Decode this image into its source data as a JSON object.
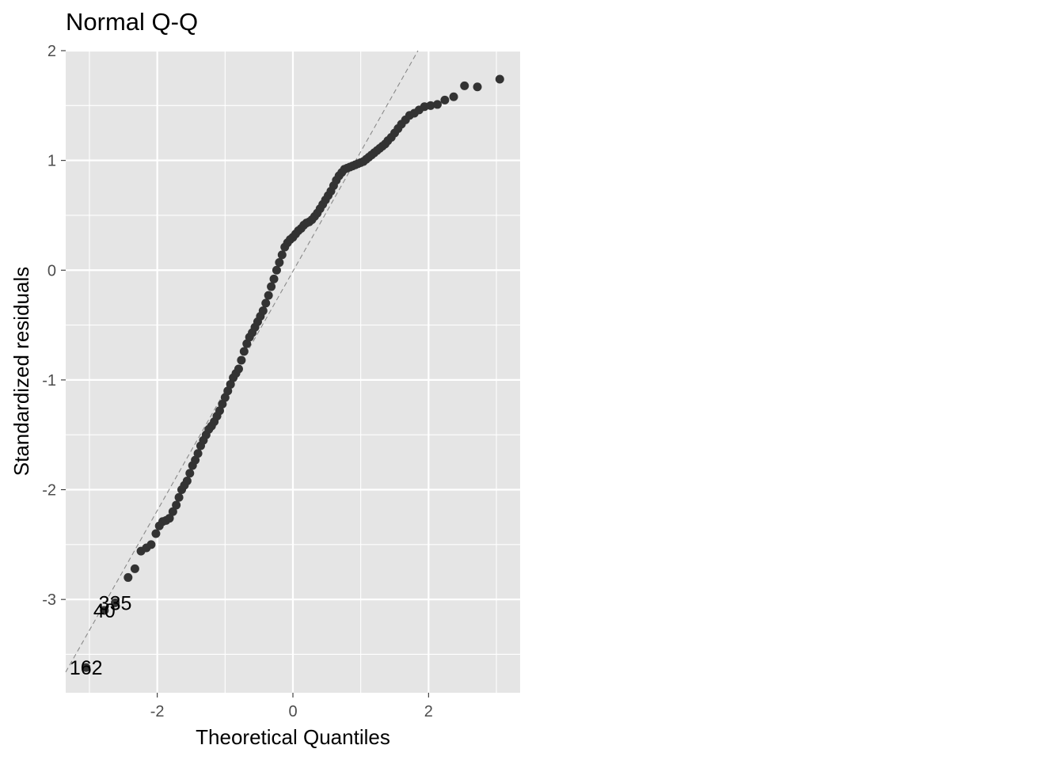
{
  "chart_data": {
    "type": "scatter",
    "title": "Normal Q-Q",
    "xlabel": "Theoretical Quantiles",
    "ylabel": "Standardized residuals",
    "xlim": [
      -3.35,
      3.35
    ],
    "ylim": [
      -3.85,
      2.0
    ],
    "x_ticks": [
      -2,
      0,
      2
    ],
    "y_ticks": [
      -3,
      -2,
      -1,
      0,
      1,
      2
    ],
    "x_tick_labels": [
      "-2",
      "0",
      "2"
    ],
    "y_tick_labels": [
      "-3",
      "-2",
      "-1",
      "0",
      "1",
      "2"
    ],
    "grid": true,
    "reference_line": {
      "intercept": -0.01,
      "slope": 1.09,
      "style": "dashed"
    },
    "points": [
      [
        -3.05,
        -3.62
      ],
      [
        -2.78,
        -3.1
      ],
      [
        -2.62,
        -3.03
      ],
      [
        -2.43,
        -2.8
      ],
      [
        -2.33,
        -2.72
      ],
      [
        -2.24,
        -2.56
      ],
      [
        -2.16,
        -2.53
      ],
      [
        -2.09,
        -2.5
      ],
      [
        -2.02,
        -2.4
      ],
      [
        -1.97,
        -2.33
      ],
      [
        -1.92,
        -2.29
      ],
      [
        -1.87,
        -2.28
      ],
      [
        -1.82,
        -2.26
      ],
      [
        -1.77,
        -2.2
      ],
      [
        -1.72,
        -2.14
      ],
      [
        -1.68,
        -2.07
      ],
      [
        -1.64,
        -2.0
      ],
      [
        -1.6,
        -1.96
      ],
      [
        -1.56,
        -1.92
      ],
      [
        -1.52,
        -1.85
      ],
      [
        -1.48,
        -1.78
      ],
      [
        -1.44,
        -1.73
      ],
      [
        -1.4,
        -1.67
      ],
      [
        -1.36,
        -1.6
      ],
      [
        -1.32,
        -1.55
      ],
      [
        -1.28,
        -1.5
      ],
      [
        -1.24,
        -1.45
      ],
      [
        -1.2,
        -1.42
      ],
      [
        -1.16,
        -1.38
      ],
      [
        -1.12,
        -1.33
      ],
      [
        -1.08,
        -1.28
      ],
      [
        -1.04,
        -1.22
      ],
      [
        -1.0,
        -1.16
      ],
      [
        -0.96,
        -1.1
      ],
      [
        -0.92,
        -1.04
      ],
      [
        -0.88,
        -0.98
      ],
      [
        -0.84,
        -0.94
      ],
      [
        -0.8,
        -0.9
      ],
      [
        -0.76,
        -0.82
      ],
      [
        -0.72,
        -0.74
      ],
      [
        -0.68,
        -0.67
      ],
      [
        -0.64,
        -0.61
      ],
      [
        -0.6,
        -0.57
      ],
      [
        -0.56,
        -0.52
      ],
      [
        -0.52,
        -0.47
      ],
      [
        -0.48,
        -0.42
      ],
      [
        -0.44,
        -0.37
      ],
      [
        -0.4,
        -0.3
      ],
      [
        -0.36,
        -0.23
      ],
      [
        -0.32,
        -0.15
      ],
      [
        -0.28,
        -0.08
      ],
      [
        -0.24,
        0.0
      ],
      [
        -0.2,
        0.07
      ],
      [
        -0.16,
        0.14
      ],
      [
        -0.12,
        0.21
      ],
      [
        -0.08,
        0.25
      ],
      [
        -0.04,
        0.28
      ],
      [
        0.0,
        0.3
      ],
      [
        0.04,
        0.33
      ],
      [
        0.08,
        0.36
      ],
      [
        0.12,
        0.38
      ],
      [
        0.16,
        0.41
      ],
      [
        0.2,
        0.43
      ],
      [
        0.24,
        0.44
      ],
      [
        0.28,
        0.46
      ],
      [
        0.32,
        0.49
      ],
      [
        0.36,
        0.52
      ],
      [
        0.4,
        0.56
      ],
      [
        0.44,
        0.6
      ],
      [
        0.48,
        0.64
      ],
      [
        0.52,
        0.68
      ],
      [
        0.56,
        0.72
      ],
      [
        0.6,
        0.77
      ],
      [
        0.64,
        0.82
      ],
      [
        0.68,
        0.86
      ],
      [
        0.72,
        0.89
      ],
      [
        0.76,
        0.92
      ],
      [
        0.8,
        0.93
      ],
      [
        0.84,
        0.94
      ],
      [
        0.88,
        0.95
      ],
      [
        0.92,
        0.96
      ],
      [
        0.96,
        0.97
      ],
      [
        1.0,
        0.98
      ],
      [
        1.04,
        0.99
      ],
      [
        1.08,
        1.01
      ],
      [
        1.12,
        1.03
      ],
      [
        1.16,
        1.05
      ],
      [
        1.2,
        1.07
      ],
      [
        1.24,
        1.09
      ],
      [
        1.28,
        1.11
      ],
      [
        1.32,
        1.13
      ],
      [
        1.36,
        1.15
      ],
      [
        1.4,
        1.18
      ],
      [
        1.45,
        1.21
      ],
      [
        1.5,
        1.25
      ],
      [
        1.55,
        1.29
      ],
      [
        1.6,
        1.33
      ],
      [
        1.66,
        1.37
      ],
      [
        1.72,
        1.41
      ],
      [
        1.79,
        1.43
      ],
      [
        1.86,
        1.46
      ],
      [
        1.94,
        1.49
      ],
      [
        2.03,
        1.5
      ],
      [
        2.13,
        1.51
      ],
      [
        2.24,
        1.55
      ],
      [
        2.37,
        1.58
      ],
      [
        2.53,
        1.68
      ],
      [
        2.72,
        1.67
      ],
      [
        3.05,
        1.74
      ]
    ],
    "annotations": [
      {
        "text": "162",
        "x": -3.05,
        "y": -3.62
      },
      {
        "text": "40",
        "x": -2.78,
        "y": -3.1
      },
      {
        "text": "335",
        "x": -2.62,
        "y": -3.03
      }
    ],
    "colors": {
      "panel_background": "#e5e5e5",
      "grid": "#ffffff",
      "points": "#333333",
      "reference_line": "#8a8a8a",
      "axis_text": "#4d4d4d",
      "label_text": "#000000"
    }
  }
}
